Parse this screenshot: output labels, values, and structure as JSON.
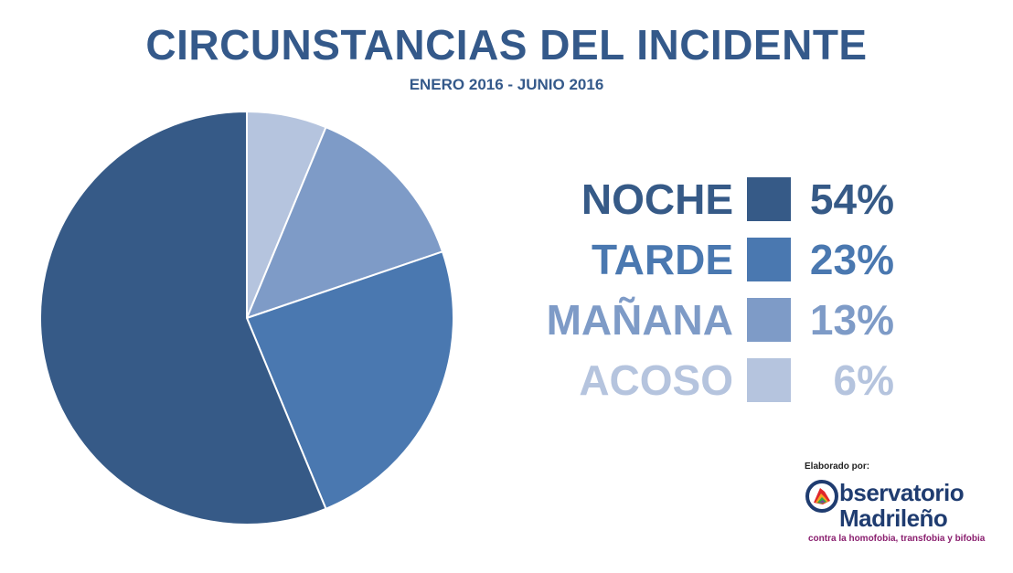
{
  "chart_data": {
    "type": "pie",
    "title": "CIRCUNSTANCIAS DEL INCIDENTE",
    "subtitle": "ENERO 2016 - JUNIO 2016",
    "legend_placement": "right",
    "slices": [
      {
        "label": "NOCHE",
        "value": 54,
        "value_label": "54%",
        "color": "#365a87"
      },
      {
        "label": "TARDE",
        "value": 23,
        "value_label": "23%",
        "color": "#4a78b0"
      },
      {
        "label": "MAÑANA",
        "value": 13,
        "value_label": "13%",
        "color": "#7e9bc7"
      },
      {
        "label": "ACOSO",
        "value": 6,
        "value_label": "6%",
        "color": "#b5c4de"
      }
    ]
  },
  "credit": "Elaborado por:",
  "logo": {
    "line1": "bservatorio",
    "line2": "Madrileño",
    "line3": "contra la homofobia, transfobia y bifobia"
  }
}
